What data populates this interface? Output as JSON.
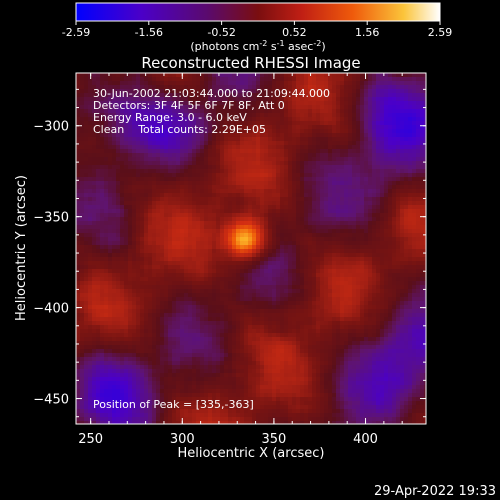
{
  "chart_data": {
    "type": "heatmap",
    "title": "Reconstructed RHESSI Image",
    "xlabel": "Heliocentric X (arcsec)",
    "ylabel": "Heliocentric Y (arcsec)",
    "xlim": [
      242,
      433
    ],
    "ylim": [
      -464,
      -271
    ],
    "x_ticks": [
      250,
      300,
      350,
      400
    ],
    "y_ticks": [
      -300,
      -350,
      -400,
      -450
    ],
    "colorbar": {
      "min": -2.59,
      "max": 2.59,
      "ticks": [
        "-2.59",
        "-1.56",
        "-0.52",
        "0.52",
        "1.56",
        "2.59"
      ],
      "unit_text": "(photons cm",
      "unit_sup1": "-2",
      "unit_mid": " s",
      "unit_sup2": "-1",
      "unit_mid2": " asec",
      "unit_sup3": "-2",
      "unit_end": ")"
    },
    "annotations": {
      "time_range": "30-Jun-2002 21:03:44.000 to 21:09:44.000",
      "detectors": "Detectors: 3F 4F 5F 6F 7F 8F, Att 0",
      "energy": "Energy Range: 3.0 - 6.0 keV",
      "clean": "Clean    Total counts: 2.29E+05",
      "peak": "Position of Peak = [335,-363]"
    },
    "peak": {
      "x": 335,
      "y": -363,
      "value": 2.59
    },
    "colormap": [
      "#0000ff",
      "#4b00c8",
      "#6a1280",
      "#8a1616",
      "#c01f14",
      "#e8500a",
      "#f7a21a",
      "#ffffff"
    ]
  },
  "footer": {
    "timestamp": "29-Apr-2022 19:33"
  }
}
